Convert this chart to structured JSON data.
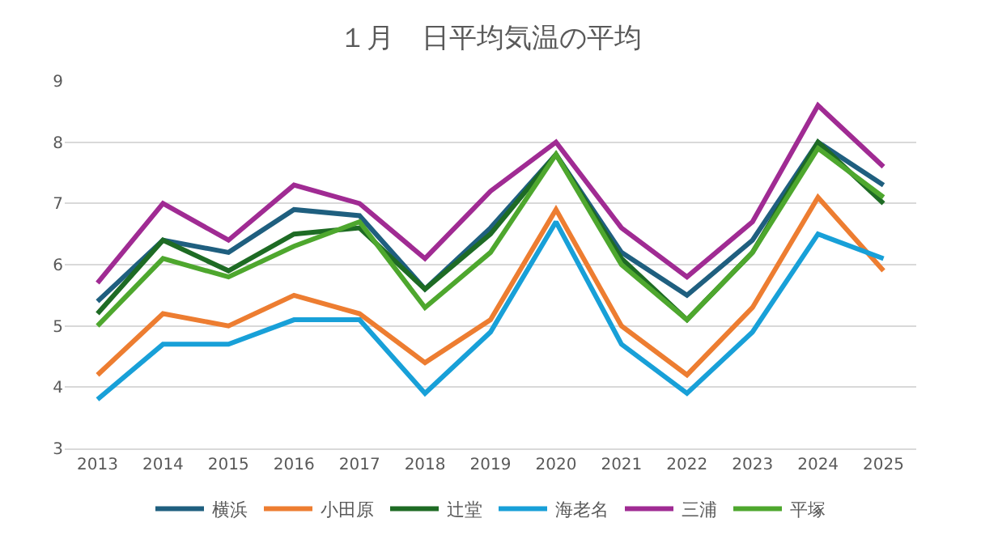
{
  "chart_data": {
    "type": "line",
    "title": "１月　日平均気温の平均",
    "categories": [
      "2013",
      "2014",
      "2015",
      "2016",
      "2017",
      "2018",
      "2019",
      "2020",
      "2021",
      "2022",
      "2023",
      "2024",
      "2025"
    ],
    "series": [
      {
        "name": "横浜",
        "color": "#1f5f7f",
        "values": [
          5.4,
          6.4,
          6.2,
          6.9,
          6.8,
          5.6,
          6.6,
          7.8,
          6.2,
          5.5,
          6.4,
          8.0,
          7.3
        ]
      },
      {
        "name": "小田原",
        "color": "#ed7d31",
        "values": [
          4.2,
          5.2,
          5.0,
          5.5,
          5.2,
          4.4,
          5.1,
          6.9,
          5.0,
          4.2,
          5.3,
          7.1,
          5.9
        ]
      },
      {
        "name": "辻堂",
        "color": "#1e6b24",
        "values": [
          5.2,
          6.4,
          5.9,
          6.5,
          6.6,
          5.6,
          6.5,
          7.8,
          6.1,
          5.1,
          6.2,
          8.0,
          7.0
        ]
      },
      {
        "name": "海老名",
        "color": "#18a0d8",
        "values": [
          3.8,
          4.7,
          4.7,
          5.1,
          5.1,
          3.9,
          4.9,
          6.7,
          4.7,
          3.9,
          4.9,
          6.5,
          6.1
        ]
      },
      {
        "name": "三浦",
        "color": "#a02b93",
        "values": [
          5.7,
          7.0,
          6.4,
          7.3,
          7.0,
          6.1,
          7.2,
          8.0,
          6.6,
          5.8,
          6.7,
          8.6,
          7.6
        ]
      },
      {
        "name": "平塚",
        "color": "#4ea72e",
        "values": [
          5.0,
          6.1,
          5.8,
          6.3,
          6.7,
          5.3,
          6.2,
          7.8,
          6.0,
          5.1,
          6.2,
          7.9,
          7.1
        ]
      }
    ],
    "ylim": [
      3,
      9
    ],
    "yticks": [
      3,
      4,
      5,
      6,
      7,
      8,
      9
    ],
    "grid": "y",
    "legend": "bottom",
    "marker": "none",
    "line_style": "solid"
  }
}
